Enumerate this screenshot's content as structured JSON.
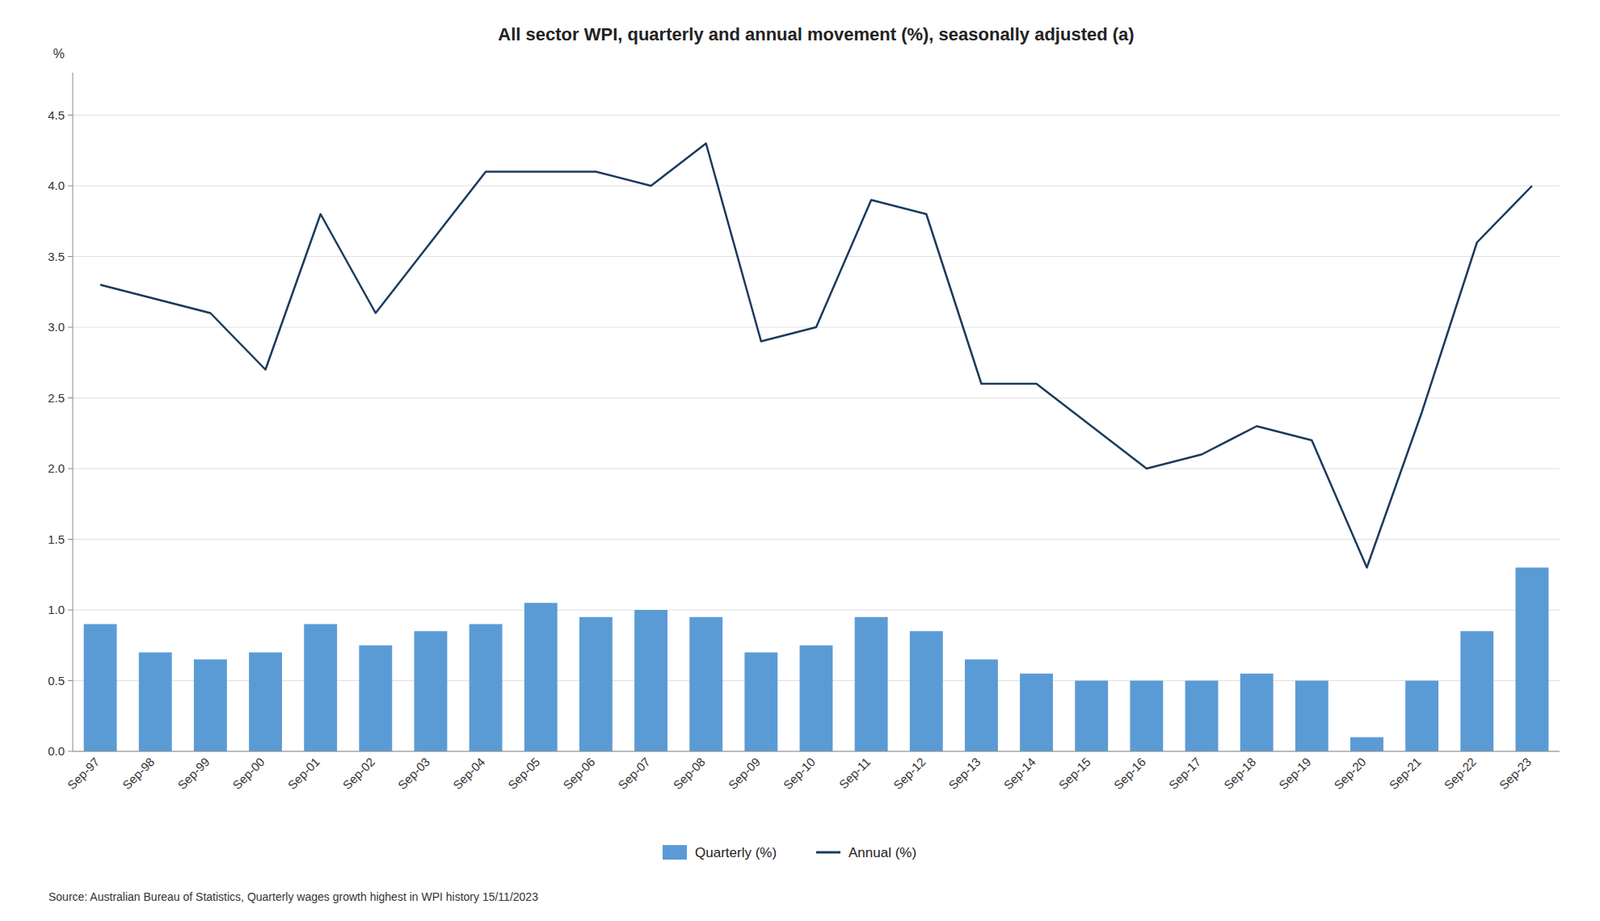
{
  "chart_data": {
    "type": "bar",
    "title": "All sector WPI, quarterly and annual movement (%), seasonally adjusted (a)",
    "y_label": "%",
    "annotations": [
      "Source: Australian Bureau of Statistics, Quarterly wages growth highest in WPI history 15/11/2023"
    ],
    "categories": [
      "Sep-97",
      "Sep-98",
      "Sep-99",
      "Sep-00",
      "Sep-01",
      "Sep-02",
      "Sep-03",
      "Sep-04",
      "Sep-05",
      "Sep-06",
      "Sep-07",
      "Sep-08",
      "Sep-09",
      "Sep-10",
      "Sep-11",
      "Sep-12",
      "Sep-13",
      "Sep-14",
      "Sep-15",
      "Sep-16",
      "Sep-17",
      "Sep-18",
      "Sep-19",
      "Sep-20",
      "Sep-21",
      "Sep-22",
      "Sep-23"
    ],
    "series": [
      {
        "name": "Quarterly (%)",
        "type": "bar",
        "color": "#5b9bd5",
        "values": [
          0.9,
          0.7,
          0.65,
          0.7,
          0.9,
          0.75,
          0.85,
          0.9,
          1.05,
          0.95,
          1.0,
          0.95,
          0.7,
          0.75,
          0.95,
          0.85,
          0.65,
          0.55,
          0.5,
          0.5,
          0.5,
          0.55,
          0.5,
          0.1,
          0.5,
          0.85,
          1.3
        ]
      },
      {
        "name": "Annual (%)",
        "type": "line",
        "color": "#1a3a5c",
        "values": [
          3.3,
          3.2,
          3.1,
          2.7,
          3.8,
          3.1,
          3.6,
          4.1,
          4.1,
          4.1,
          4.0,
          4.3,
          2.9,
          3.0,
          3.9,
          3.8,
          2.6,
          2.6,
          2.3,
          2.0,
          2.1,
          2.3,
          2.2,
          1.3,
          2.4,
          3.6,
          4.0
        ]
      }
    ],
    "ylim": [
      0,
      4.8
    ],
    "yticks": [
      {
        "value": 0,
        "label": "0.0"
      },
      0.5,
      {
        "value": 1,
        "label": "1.0"
      },
      1.5,
      {
        "value": 2,
        "label": "2.0"
      },
      2.5,
      {
        "value": 3,
        "label": "3.0"
      },
      3.5,
      {
        "value": 4,
        "label": "4.0"
      },
      4.5
    ],
    "grid": true,
    "legend": "bottom"
  }
}
